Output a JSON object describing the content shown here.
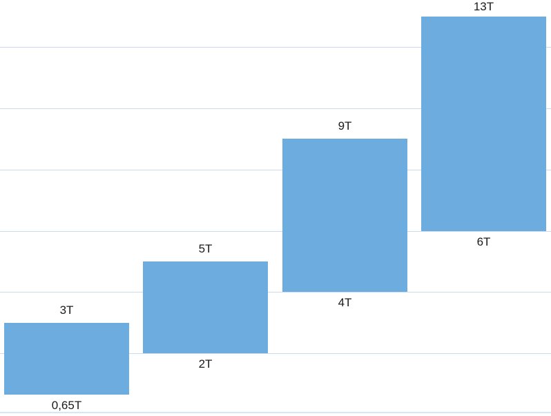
{
  "chart_data": {
    "type": "bar",
    "subtype": "range-column-floating-bars",
    "title": "",
    "xlabel": "",
    "ylabel": "",
    "legend": "none",
    "grid": true,
    "x_axis_tick_labels": [],
    "y_axis_tick_labels": [],
    "ylim": [
      0,
      13.6
    ],
    "gridline_values": [
      2,
      4,
      6,
      8,
      10,
      12
    ],
    "bars": [
      {
        "low": 0.65,
        "high": 3,
        "low_label": "0,65T",
        "high_label": "3T"
      },
      {
        "low": 2,
        "high": 5,
        "low_label": "2T",
        "high_label": "5T"
      },
      {
        "low": 4,
        "high": 9,
        "low_label": "4T",
        "high_label": "9T"
      },
      {
        "low": 6,
        "high": 13,
        "low_label": "6T",
        "high_label": "13T"
      }
    ],
    "colors": {
      "bar_fill": "#6cacde",
      "gridline": "#ccdaee",
      "baseline": "#d8e6f4",
      "label_text": "#1a1a1a",
      "background": "#ffffff"
    }
  }
}
